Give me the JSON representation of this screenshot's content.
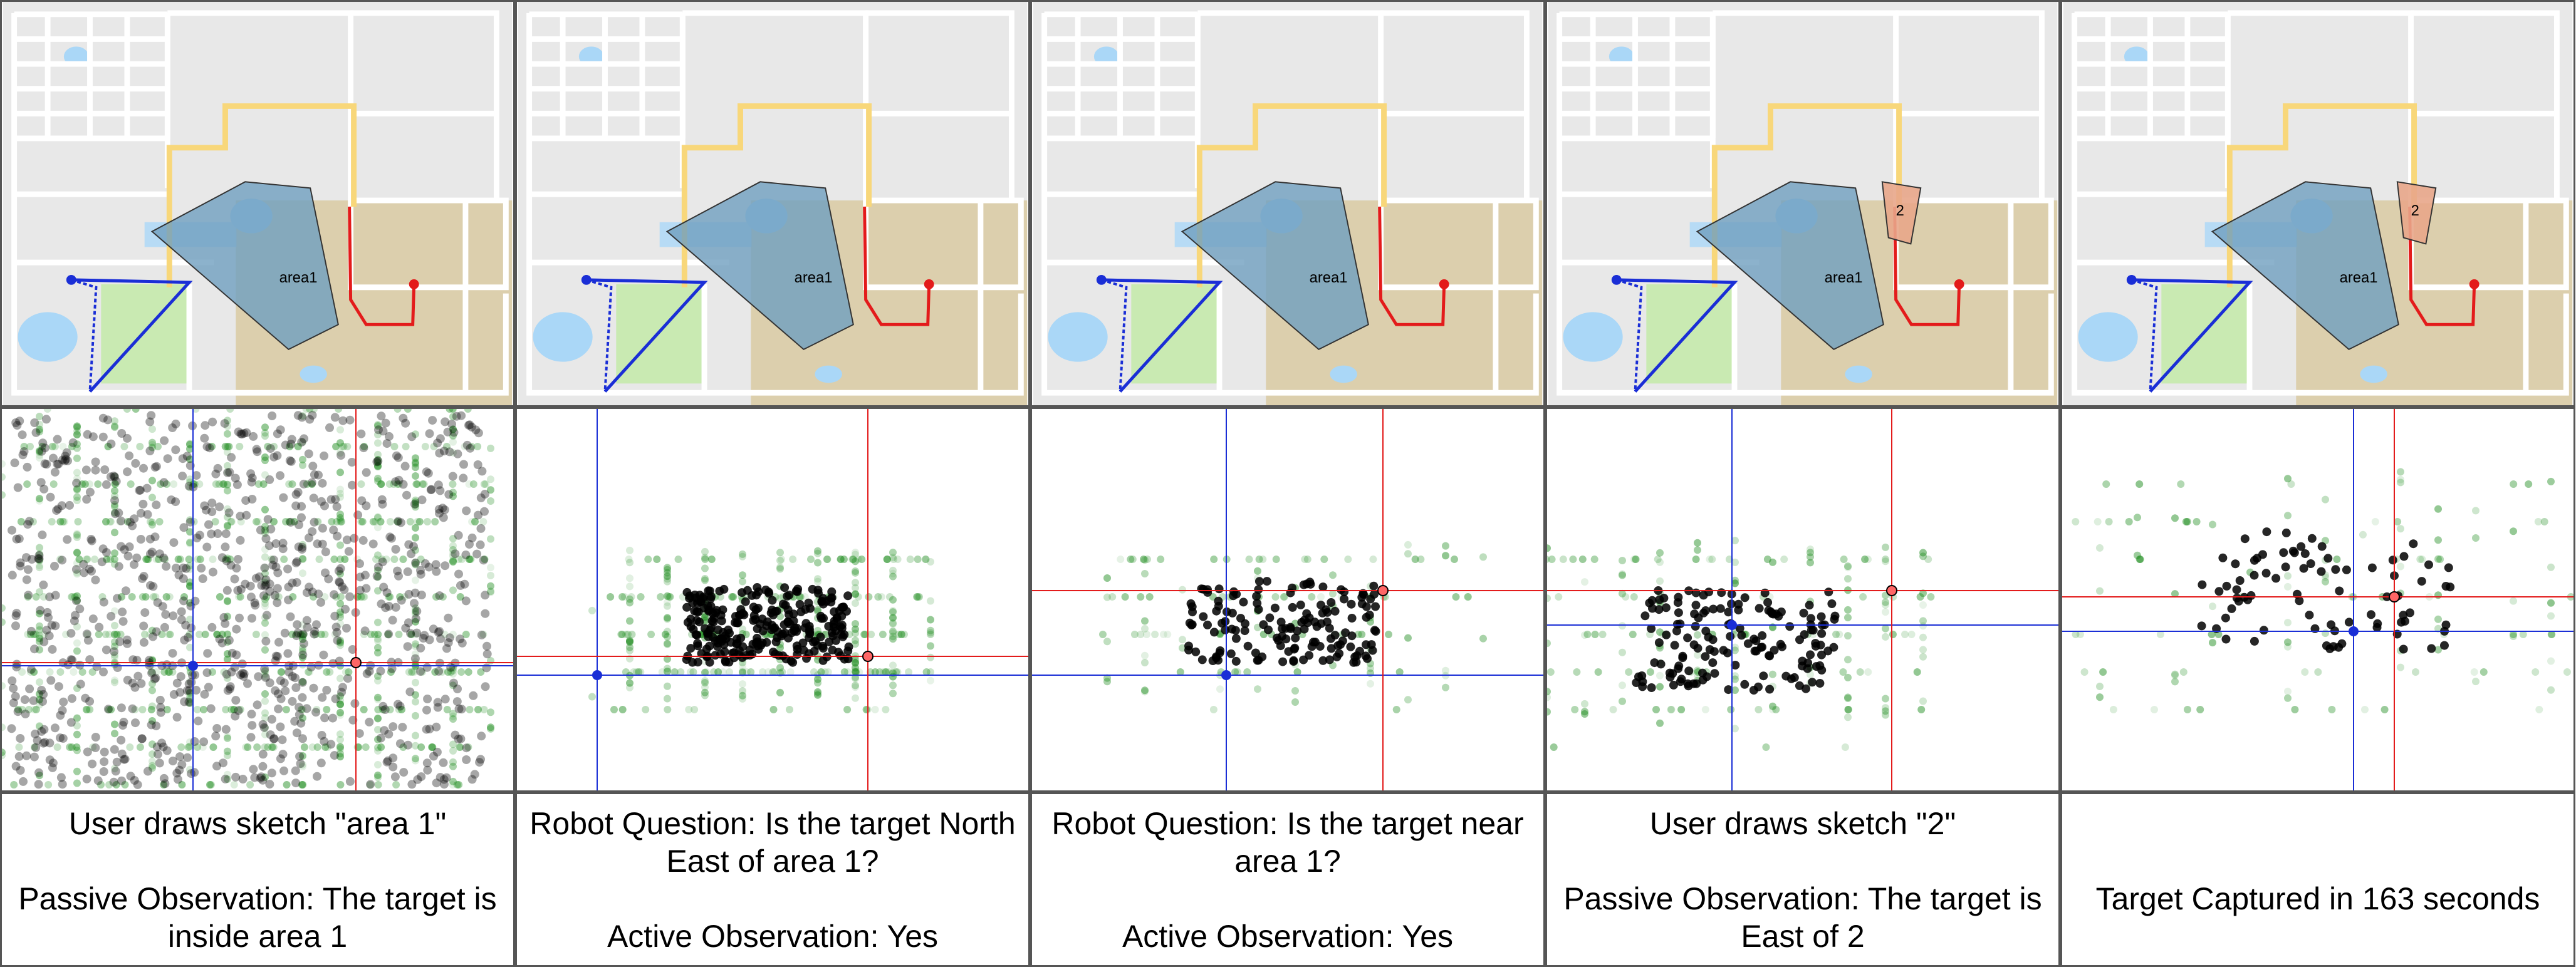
{
  "colors": {
    "floor": "#e8e8e8",
    "wall": "#ffffff",
    "tan_region": "#dccfad",
    "green_region": "#c9eab2",
    "light_blue": "#aad7f7",
    "robot_blue": "#1a2ed6",
    "target_red": "#e31b1b",
    "yellow_path": "#f8d77a",
    "sketch_fill": "#6f9fbf",
    "sketch2_fill": "#e8a68a",
    "particle_black": "#000000",
    "particle_green": "#1e8c1e"
  },
  "panels": [
    {
      "sketch_label": "area1",
      "sketch2_label": "",
      "caption_line1": "User draws sketch \"area 1\"",
      "caption_line2": "Passive Observation: The target is inside area 1"
    },
    {
      "sketch_label": "area1",
      "sketch2_label": "",
      "caption_line1": "Robot Question: Is the target North East of area 1?",
      "caption_line2": "Active Observation: Yes"
    },
    {
      "sketch_label": "area1",
      "sketch2_label": "",
      "caption_line1": "Robot Question: Is the target near area 1?",
      "caption_line2": "Active Observation: Yes"
    },
    {
      "sketch_label": "area1",
      "sketch2_label": "2",
      "caption_line1": "User draws sketch \"2\"",
      "caption_line2": "Passive Observation: The target is East of 2"
    },
    {
      "sketch_label": "area1",
      "sketch2_label": "2",
      "caption_line1": "",
      "caption_line2": "Target Captured in 163 seconds"
    }
  ]
}
